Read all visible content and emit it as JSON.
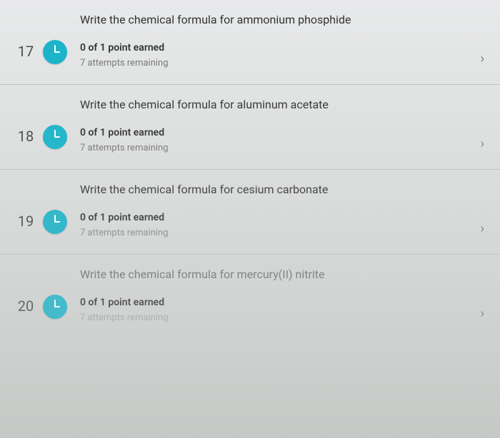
{
  "questions": [
    {
      "number": "17",
      "title": "Write the chemical formula for ammonium phosphide",
      "points": "0 of 1 point earned",
      "attempts": "7 attempts remaining"
    },
    {
      "number": "18",
      "title": "Write the chemical formula for aluminum acetate",
      "points": "0 of 1 point earned",
      "attempts": "7 attempts remaining"
    },
    {
      "number": "19",
      "title": "Write the chemical formula for cesium carbonate",
      "points": "0 of 1 point earned",
      "attempts": "7 attempts remaining"
    },
    {
      "number": "20",
      "title": "Write the chemical formula for mercury(II) nitrite",
      "points": "0 of 1 point earned",
      "attempts": "7 attempts remaining"
    }
  ],
  "chevron": "›"
}
